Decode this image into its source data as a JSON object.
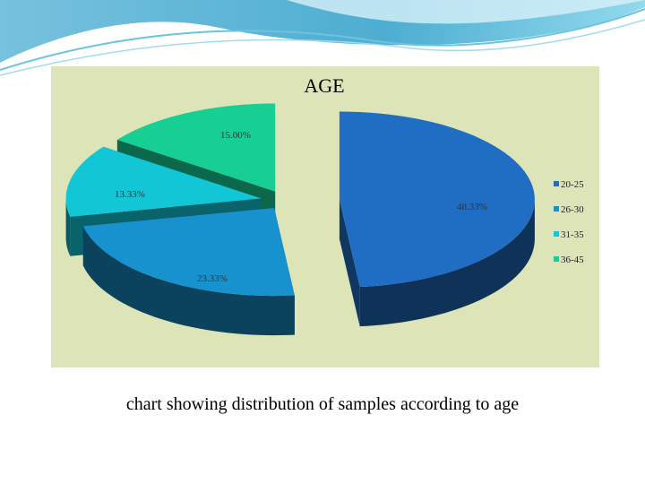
{
  "chart_data": {
    "type": "pie",
    "title": "AGE",
    "categories": [
      "20-25",
      "26-30",
      "31-35",
      "36-45"
    ],
    "values": [
      48.33,
      23.33,
      13.33,
      15.0
    ],
    "labels": [
      "48.33%",
      "23.33%",
      "13.33%",
      "15.00%"
    ],
    "legend": "right",
    "three_d": true,
    "exploded": true
  },
  "caption": "chart showing distribution of samples according to age",
  "colors": {
    "panel_background": "#dde4b8",
    "slice_20_25": "#1f6ec4",
    "slice_26_30": "#1892cf",
    "slice_31_35": "#12c6d6",
    "slice_36_45": "#17cf93"
  }
}
